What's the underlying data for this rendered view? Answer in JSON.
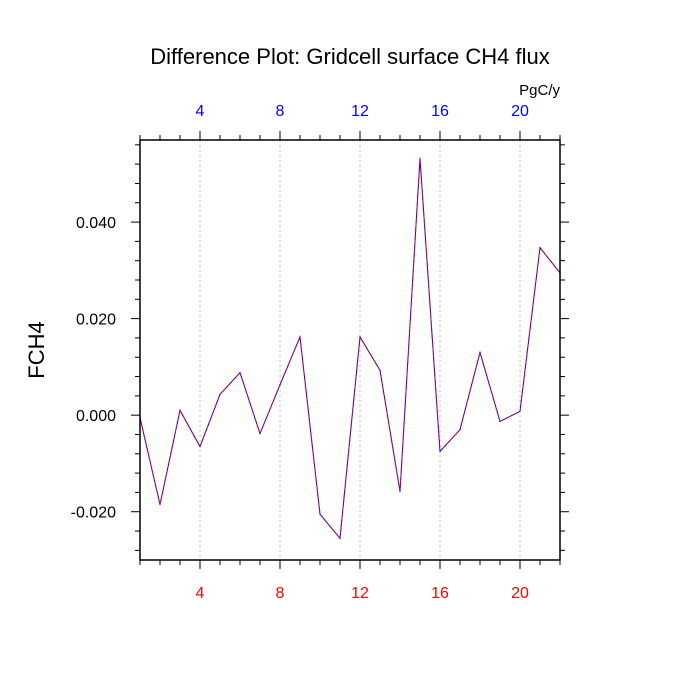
{
  "chart_data": {
    "type": "line",
    "title": "Difference Plot: Gridcell surface CH4 flux",
    "ylabel": "FCH4",
    "units_label": "PgC/y",
    "xlim": [
      1,
      22
    ],
    "ylim": [
      -0.03,
      0.057
    ],
    "x_ticks": [
      4,
      8,
      12,
      16,
      20
    ],
    "y_ticks": [
      -0.02,
      0.0,
      0.02,
      0.04
    ],
    "y_tick_labels": [
      "-0.020",
      "0.000",
      "0.020",
      "0.040"
    ],
    "grid_x": true,
    "top_tick_color": "#0000ff",
    "bottom_tick_color": "#ff0000",
    "series": [
      {
        "colors": [
          "#0000ff",
          "#ff0000"
        ],
        "x": [
          1,
          2,
          3,
          4,
          5,
          6,
          7,
          8,
          9,
          10,
          11,
          12,
          13,
          14,
          15,
          16,
          17,
          18,
          19,
          20,
          21,
          22
        ],
        "values": [
          -0.0005,
          -0.0185,
          0.001,
          -0.0065,
          0.0043,
          0.0088,
          -0.0038,
          0.0063,
          0.0162,
          -0.0205,
          -0.0255,
          0.0162,
          0.0093,
          -0.0158,
          0.0532,
          -0.0075,
          -0.003,
          0.013,
          -0.0013,
          0.0008,
          0.0347,
          0.0295
        ]
      }
    ]
  }
}
